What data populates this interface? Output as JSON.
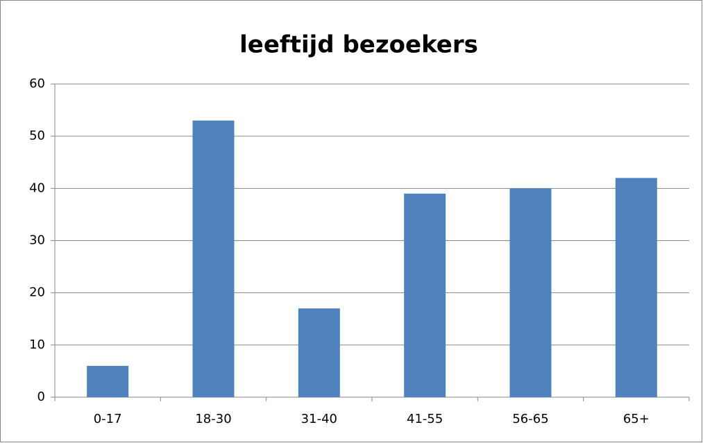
{
  "chart_data": {
    "type": "bar",
    "title": "leeftijd bezoekers",
    "categories": [
      "0-17",
      "18-30",
      "31-40",
      "41-55",
      "56-65",
      "65+"
    ],
    "values": [
      6,
      53,
      17,
      39,
      40,
      42
    ],
    "color": "#4f81bd",
    "ylim": [
      0,
      60
    ],
    "yticks": [
      0,
      10,
      20,
      30,
      40,
      50,
      60
    ],
    "grid": true
  }
}
